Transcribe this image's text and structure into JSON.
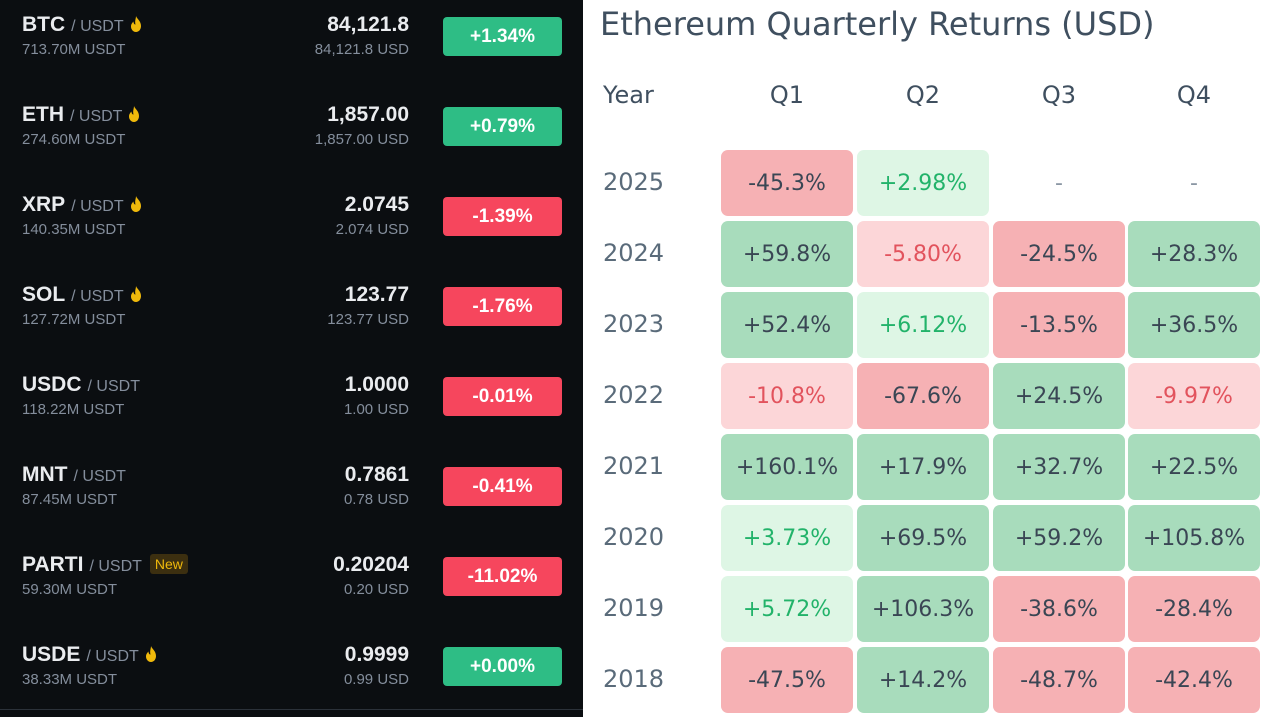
{
  "markets": [
    {
      "base": "BTC",
      "quote": "/ USDT",
      "hot": true,
      "badge": "",
      "volume": "713.70M USDT",
      "price": "84,121.8",
      "fiat": "84,121.8 USD",
      "change": "+1.34%",
      "dir": "up"
    },
    {
      "base": "ETH",
      "quote": "/ USDT",
      "hot": true,
      "badge": "",
      "volume": "274.60M USDT",
      "price": "1,857.00",
      "fiat": "1,857.00 USD",
      "change": "+0.79%",
      "dir": "up"
    },
    {
      "base": "XRP",
      "quote": "/ USDT",
      "hot": true,
      "badge": "",
      "volume": "140.35M USDT",
      "price": "2.0745",
      "fiat": "2.074 USD",
      "change": "-1.39%",
      "dir": "down"
    },
    {
      "base": "SOL",
      "quote": "/ USDT",
      "hot": true,
      "badge": "",
      "volume": "127.72M USDT",
      "price": "123.77",
      "fiat": "123.77 USD",
      "change": "-1.76%",
      "dir": "down"
    },
    {
      "base": "USDC",
      "quote": "/ USDT",
      "hot": false,
      "badge": "",
      "volume": "118.22M USDT",
      "price": "1.0000",
      "fiat": "1.00 USD",
      "change": "-0.01%",
      "dir": "down"
    },
    {
      "base": "MNT",
      "quote": "/ USDT",
      "hot": false,
      "badge": "",
      "volume": "87.45M USDT",
      "price": "0.7861",
      "fiat": "0.78 USD",
      "change": "-0.41%",
      "dir": "down"
    },
    {
      "base": "PARTI",
      "quote": "/ USDT",
      "hot": false,
      "badge": "New",
      "volume": "59.30M USDT",
      "price": "0.20204",
      "fiat": "0.20 USD",
      "change": "-11.02%",
      "dir": "down"
    },
    {
      "base": "USDE",
      "quote": "/ USDT",
      "hot": true,
      "badge": "",
      "volume": "38.33M USDT",
      "price": "0.9999",
      "fiat": "0.99 USD",
      "change": "+0.00%",
      "dir": "up"
    }
  ],
  "returns_table": {
    "title": "Ethereum Quarterly Returns (USD)",
    "headers": [
      "Year",
      "Q1",
      "Q2",
      "Q3",
      "Q4"
    ],
    "rows": [
      {
        "year": "2025",
        "values": [
          "-45.3%",
          "+2.98%",
          "-",
          "-"
        ]
      },
      {
        "year": "2024",
        "values": [
          "+59.8%",
          "-5.80%",
          "-24.5%",
          "+28.3%"
        ]
      },
      {
        "year": "2023",
        "values": [
          "+52.4%",
          "+6.12%",
          "-13.5%",
          "+36.5%"
        ]
      },
      {
        "year": "2022",
        "values": [
          "-10.8%",
          "-67.6%",
          "+24.5%",
          "-9.97%"
        ]
      },
      {
        "year": "2021",
        "values": [
          "+160.1%",
          "+17.9%",
          "+32.7%",
          "+22.5%"
        ]
      },
      {
        "year": "2020",
        "values": [
          "+3.73%",
          "+69.5%",
          "+59.2%",
          "+105.8%"
        ]
      },
      {
        "year": "2019",
        "values": [
          "+5.72%",
          "+106.3%",
          "-38.6%",
          "-28.4%"
        ]
      },
      {
        "year": "2018",
        "values": [
          "-47.5%",
          "+14.2%",
          "-48.7%",
          "-42.4%"
        ]
      }
    ]
  },
  "colors": {
    "up": "#2ebd85",
    "down": "#f6465d",
    "hot": "#f0b90b",
    "pos_strong": "#a8dcbc",
    "pos_light": "#def6e5",
    "neg_strong": "#f6b1b4",
    "neg_light": "#fcd6d8",
    "pos_text": "#22b36a",
    "neg_text": "#e2535d",
    "dark_text": "#3a4654"
  },
  "chart_data": {
    "type": "heatmap",
    "title": "Ethereum Quarterly Returns (USD)",
    "x": [
      "Q1",
      "Q2",
      "Q3",
      "Q4"
    ],
    "y": [
      "2025",
      "2024",
      "2023",
      "2022",
      "2021",
      "2020",
      "2019",
      "2018"
    ],
    "values": [
      [
        -45.3,
        2.98,
        null,
        null
      ],
      [
        59.8,
        -5.8,
        -24.5,
        28.3
      ],
      [
        52.4,
        6.12,
        -13.5,
        36.5
      ],
      [
        -10.8,
        -67.6,
        24.5,
        -9.97
      ],
      [
        160.1,
        17.9,
        32.7,
        22.5
      ],
      [
        3.73,
        69.5,
        59.2,
        105.8
      ],
      [
        5.72,
        106.3,
        -38.6,
        -28.4
      ],
      [
        -47.5,
        14.2,
        -48.7,
        -42.4
      ]
    ],
    "unit": "%"
  }
}
